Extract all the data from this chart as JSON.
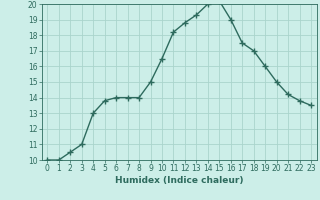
{
  "x": [
    0,
    1,
    2,
    3,
    4,
    5,
    6,
    7,
    8,
    9,
    10,
    11,
    12,
    13,
    14,
    15,
    16,
    17,
    18,
    19,
    20,
    21,
    22,
    23
  ],
  "y": [
    10.0,
    10.0,
    10.5,
    11.0,
    13.0,
    13.8,
    14.0,
    14.0,
    14.0,
    15.0,
    16.5,
    18.2,
    18.8,
    19.3,
    20.0,
    20.2,
    19.0,
    17.5,
    17.0,
    16.0,
    15.0,
    14.2,
    13.8,
    13.5
  ],
  "xlabel": "Humidex (Indice chaleur)",
  "xlim": [
    -0.5,
    23.5
  ],
  "ylim": [
    10,
    20
  ],
  "yticks": [
    10,
    11,
    12,
    13,
    14,
    15,
    16,
    17,
    18,
    19,
    20
  ],
  "xticks": [
    0,
    1,
    2,
    3,
    4,
    5,
    6,
    7,
    8,
    9,
    10,
    11,
    12,
    13,
    14,
    15,
    16,
    17,
    18,
    19,
    20,
    21,
    22,
    23
  ],
  "line_color": "#2e6b5e",
  "bg_color": "#cceee8",
  "grid_color": "#aad4cc",
  "tick_color": "#2e6b5e",
  "label_color": "#2e6b5e",
  "tick_fontsize": 5.5,
  "xlabel_fontsize": 6.5
}
